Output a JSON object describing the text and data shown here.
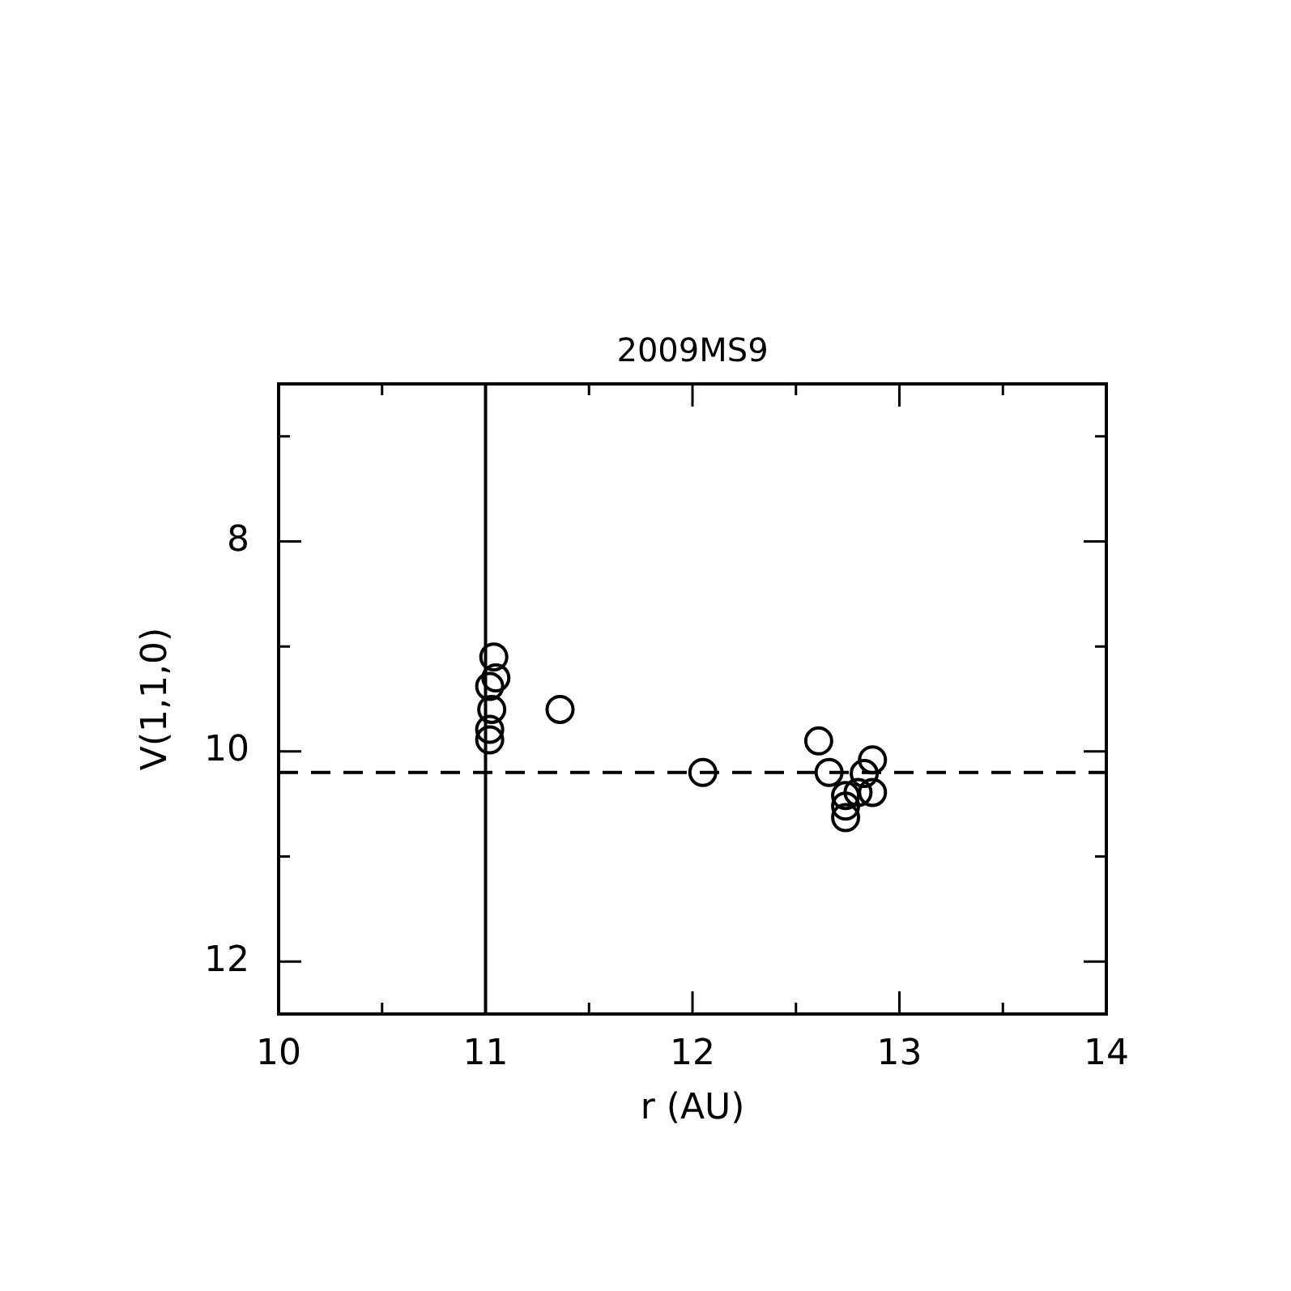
{
  "chart_data": {
    "type": "scatter",
    "title": "2009MS9",
    "xlabel": "r (AU)",
    "ylabel": "V(1,1,0)",
    "xlim": [
      10,
      14
    ],
    "ylim": [
      12.5,
      6.5
    ],
    "xticks": [
      10,
      {
        "value": 10.5,
        "label": null
      },
      11,
      {
        "value": 11.5,
        "label": null
      },
      12,
      {
        "value": 12.5,
        "label": null
      },
      13,
      {
        "value": 13.5,
        "label": null
      },
      14
    ],
    "yticks": [
      {
        "value": 7,
        "label": null
      },
      8,
      {
        "value": 9,
        "label": null
      },
      10,
      {
        "value": 11,
        "label": null
      },
      12
    ],
    "marker": "circle",
    "series": [
      {
        "color": "#000000",
        "x": [
          11.04,
          11.05,
          11.02,
          11.03,
          11.02,
          11.02,
          11.36,
          12.05,
          12.61,
          12.66,
          12.87,
          12.83,
          12.87,
          12.8,
          12.74,
          12.74,
          12.74
        ],
        "values": [
          9.1,
          9.3,
          9.38,
          9.6,
          9.79,
          9.89,
          9.6,
          10.2,
          9.9,
          10.2,
          10.08,
          10.21,
          10.39,
          10.39,
          10.42,
          10.52,
          10.63
        ]
      }
    ],
    "ref_lines": [
      {
        "axis": "x",
        "value": 11,
        "color": "#000000",
        "line_style": "solid"
      },
      {
        "axis": "y",
        "value": 10.2,
        "color": "#000000",
        "line_style": "dashed"
      }
    ]
  }
}
